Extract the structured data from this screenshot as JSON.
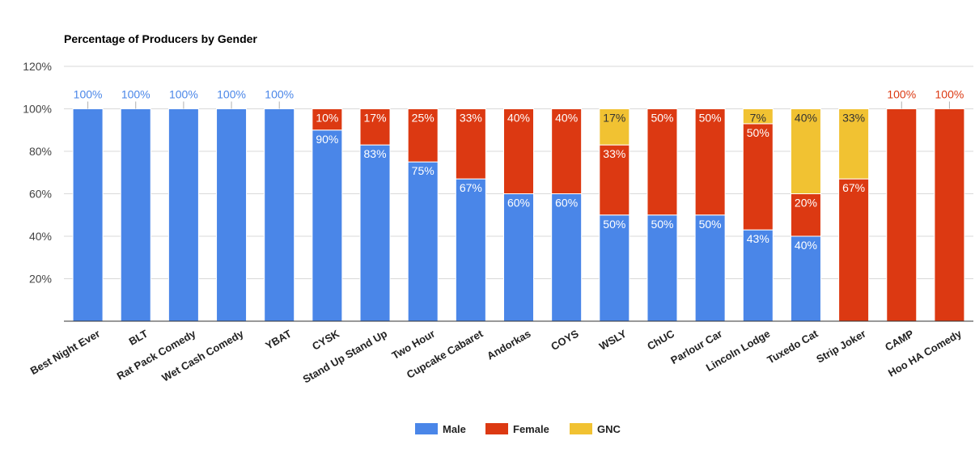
{
  "chart_data": {
    "type": "bar",
    "stacked": true,
    "title": "Percentage of Producers by Gender",
    "xlabel": "",
    "ylabel": "",
    "ylim": [
      0,
      120
    ],
    "yticks": [
      "20%",
      "40%",
      "60%",
      "80%",
      "100%",
      "120%"
    ],
    "ytick_values": [
      20,
      40,
      60,
      80,
      100,
      120
    ],
    "grid": true,
    "legend_position": "bottom",
    "categories": [
      "Best Night Ever",
      "BLT",
      "Rat Pack Comedy",
      "Wet Cash Comedy",
      "YBAT",
      "CYSK",
      "Stand Up Stand Up",
      "Two Hour",
      "Cupcake Cabaret",
      "Andorkas",
      "COYS",
      "WSLY",
      "ChUC",
      "Parlour Car",
      "Lincoln Lodge",
      "Tuxedo Cat",
      "Strip Joker",
      "CAMP",
      "Hoo HA Comedy"
    ],
    "series": [
      {
        "name": "Male",
        "color": "#4a86e8",
        "values": [
          100,
          100,
          100,
          100,
          100,
          90,
          83,
          75,
          67,
          60,
          60,
          50,
          50,
          50,
          43,
          40,
          0,
          0,
          0
        ],
        "labels": [
          "100%",
          "100%",
          "100%",
          "100%",
          "100%",
          "90%",
          "83%",
          "75%",
          "67%",
          "60%",
          "60%",
          "50%",
          "50%",
          "50%",
          "43%",
          "40%",
          "",
          "",
          ""
        ]
      },
      {
        "name": "Female",
        "color": "#dc3912",
        "values": [
          0,
          0,
          0,
          0,
          0,
          10,
          17,
          25,
          33,
          40,
          40,
          33,
          50,
          50,
          50,
          20,
          67,
          100,
          100
        ],
        "labels": [
          "",
          "",
          "",
          "",
          "",
          "10%",
          "17%",
          "25%",
          "33%",
          "40%",
          "40%",
          "33%",
          "50%",
          "50%",
          "50%",
          "20%",
          "67%",
          "100%",
          "100%"
        ]
      },
      {
        "name": "GNC",
        "color": "#f1c232",
        "values": [
          0,
          0,
          0,
          0,
          0,
          0,
          0,
          0,
          0,
          0,
          0,
          17,
          0,
          0,
          7,
          40,
          33,
          0,
          0
        ],
        "labels": [
          "",
          "",
          "",
          "",
          "",
          "",
          "",
          "",
          "",
          "",
          "",
          "17%",
          "",
          "",
          "7%",
          "40%",
          "33%",
          "",
          ""
        ]
      }
    ]
  }
}
